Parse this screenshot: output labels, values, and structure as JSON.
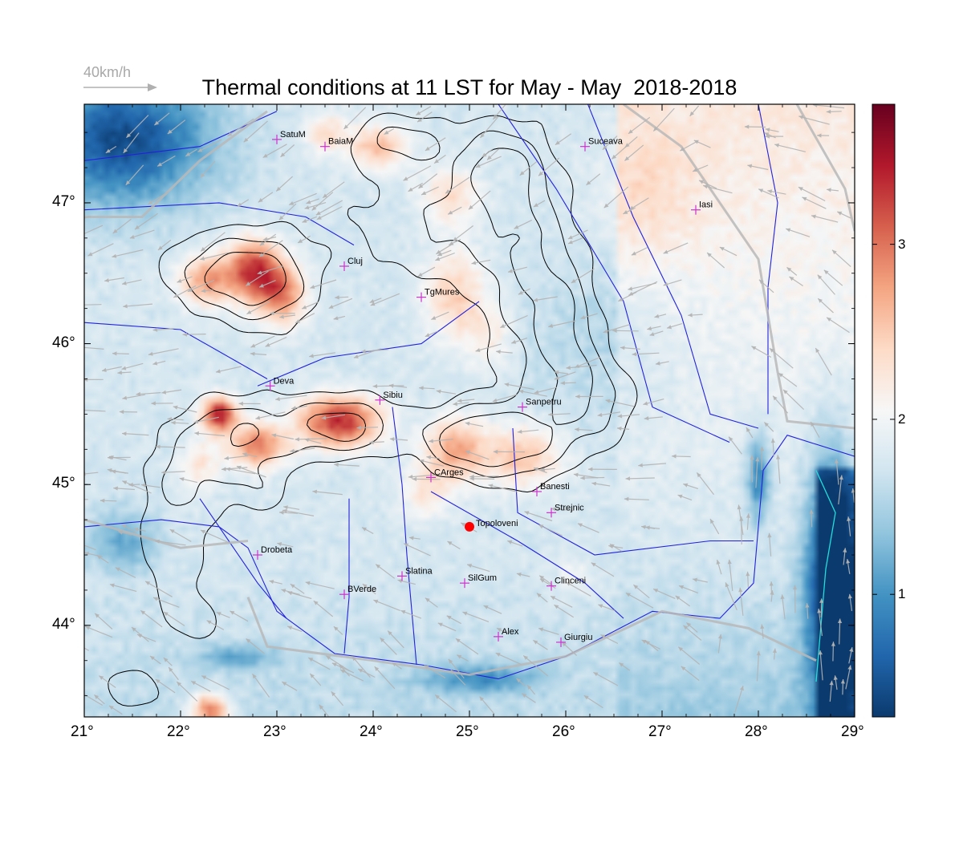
{
  "title": "Thermal conditions at 11 LST for May - May  2018-2018",
  "wind_legend": {
    "label": "40km/h",
    "color": "#aaaaaa"
  },
  "map": {
    "lon_range": [
      21,
      29
    ],
    "lat_range": [
      43.35,
      47.7
    ],
    "x_tick_labels": [
      "21°",
      "22°",
      "23°",
      "24°",
      "25°",
      "26°",
      "27°",
      "28°",
      "29°"
    ],
    "y_tick_labels": [
      "44°",
      "45°",
      "46°",
      "47°"
    ],
    "field_min": 0.3,
    "field_max": 3.8
  },
  "colorbar": {
    "labels": [
      "1",
      "2",
      "3"
    ],
    "colors": [
      "#0b3a6e",
      "#2166ac",
      "#4393c3",
      "#92c5de",
      "#d1e5f0",
      "#f7f7f7",
      "#fddbc7",
      "#f4a582",
      "#d6604d",
      "#b2182b",
      "#67001f"
    ]
  },
  "cities": [
    {
      "name": "SatuM",
      "lon": 23.0,
      "lat": 47.45
    },
    {
      "name": "BaiaM",
      "lon": 23.5,
      "lat": 47.4
    },
    {
      "name": "Suceava",
      "lon": 26.2,
      "lat": 47.4
    },
    {
      "name": "Iasi",
      "lon": 27.35,
      "lat": 46.95
    },
    {
      "name": "Cluj",
      "lon": 23.7,
      "lat": 46.55
    },
    {
      "name": "TgMures",
      "lon": 24.5,
      "lat": 46.33
    },
    {
      "name": "Deva",
      "lon": 22.93,
      "lat": 45.7
    },
    {
      "name": "Sibiu",
      "lon": 24.07,
      "lat": 45.6
    },
    {
      "name": "Sanpetru",
      "lon": 25.55,
      "lat": 45.55
    },
    {
      "name": "CArges",
      "lon": 24.6,
      "lat": 45.05
    },
    {
      "name": "Banesti",
      "lon": 25.7,
      "lat": 44.95
    },
    {
      "name": "Strejnic",
      "lon": 25.85,
      "lat": 44.8
    },
    {
      "name": "Drobeta",
      "lon": 22.8,
      "lat": 44.5
    },
    {
      "name": "Slatina",
      "lon": 24.3,
      "lat": 44.35
    },
    {
      "name": "SilGum",
      "lon": 24.95,
      "lat": 44.3
    },
    {
      "name": "Clinceni",
      "lon": 25.85,
      "lat": 44.28
    },
    {
      "name": "BVerde",
      "lon": 23.7,
      "lat": 44.22
    },
    {
      "name": "Alex",
      "lon": 25.3,
      "lat": 43.92
    },
    {
      "name": "Giurgiu",
      "lon": 25.95,
      "lat": 43.88
    }
  ],
  "site": {
    "name": "Topoloveni",
    "lon": 25.0,
    "lat": 44.7,
    "color": "#ff0000"
  },
  "colors": {
    "city_marker": "#cc33cc",
    "river": "#2222dd",
    "border": "#b8b8b8",
    "contour": "#000000",
    "wind": "#b4b4b4",
    "coast": "#22dddd"
  }
}
